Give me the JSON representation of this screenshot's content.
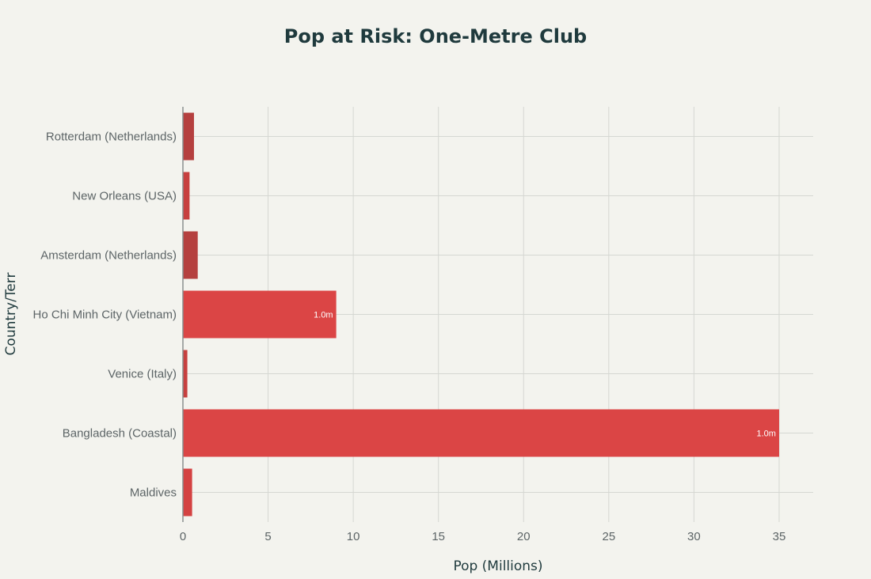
{
  "chart_data": {
    "type": "bar",
    "orientation": "horizontal",
    "title": "Pop at Risk: One-Metre Club",
    "xlabel": "Pop (Millions)",
    "ylabel": "Country/Terr",
    "xlim": [
      0,
      37
    ],
    "xticks": [
      0,
      5,
      10,
      15,
      20,
      25,
      30,
      35
    ],
    "grid": true,
    "legend": "none",
    "categories": [
      "Rotterdam (Netherlands)",
      "New Orleans (USA)",
      "Amsterdam (Netherlands)",
      "Ho Chi Minh City (Vietnam)",
      "Venice (Italy)",
      "Bangladesh (Coastal)",
      "Maldives"
    ],
    "values": [
      0.65,
      0.39,
      0.87,
      9.0,
      0.26,
      35.0,
      0.54
    ],
    "data_labels": [
      "",
      "",
      "",
      "1.0m",
      "",
      "1.0m",
      ""
    ],
    "bar_colors": [
      "#b5403f",
      "#c7403f",
      "#b5403f",
      "#db4545",
      "#c7403f",
      "#db4545",
      "#d44242"
    ]
  },
  "colors": {
    "background": "#f3f3ee",
    "grid": "#d5d7d2",
    "axis_line": "#8a8f8f"
  }
}
